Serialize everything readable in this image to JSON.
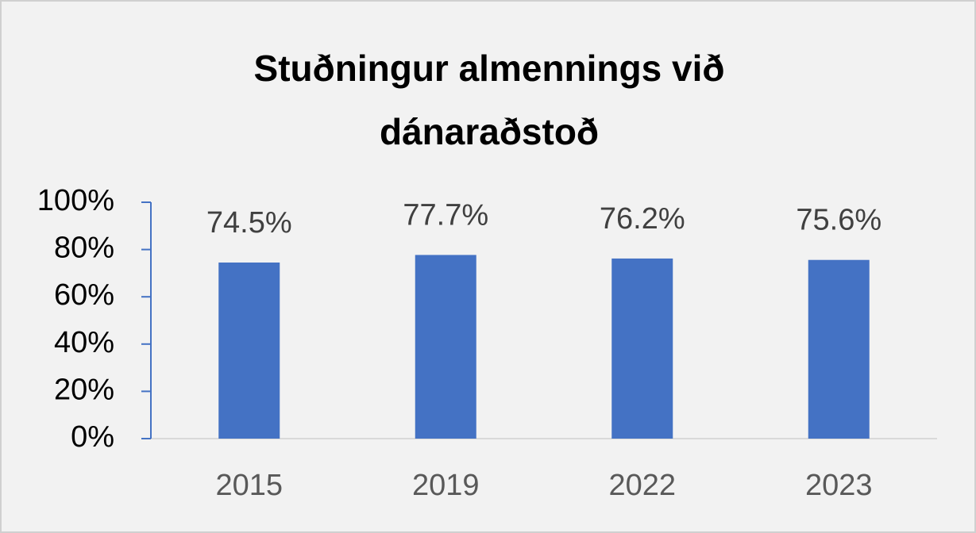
{
  "chart_data": {
    "type": "bar",
    "title": "Stuðningur almennings við dánaraðstoð",
    "categories": [
      "2015",
      "2019",
      "2022",
      "2023"
    ],
    "values": [
      74.5,
      77.7,
      76.2,
      75.6
    ],
    "value_labels": [
      "74.5%",
      "77.7%",
      "76.2%",
      "75.6%"
    ],
    "color": "#4472c4",
    "ylim": [
      0,
      100
    ],
    "yticks": [
      {
        "value": 0,
        "label": "0%"
      },
      {
        "value": 20,
        "label": "20%"
      },
      {
        "value": 40,
        "label": "40%"
      },
      {
        "value": 60,
        "label": "60%"
      },
      {
        "value": 80,
        "label": "80%"
      },
      {
        "value": 100,
        "label": "100%"
      }
    ]
  }
}
